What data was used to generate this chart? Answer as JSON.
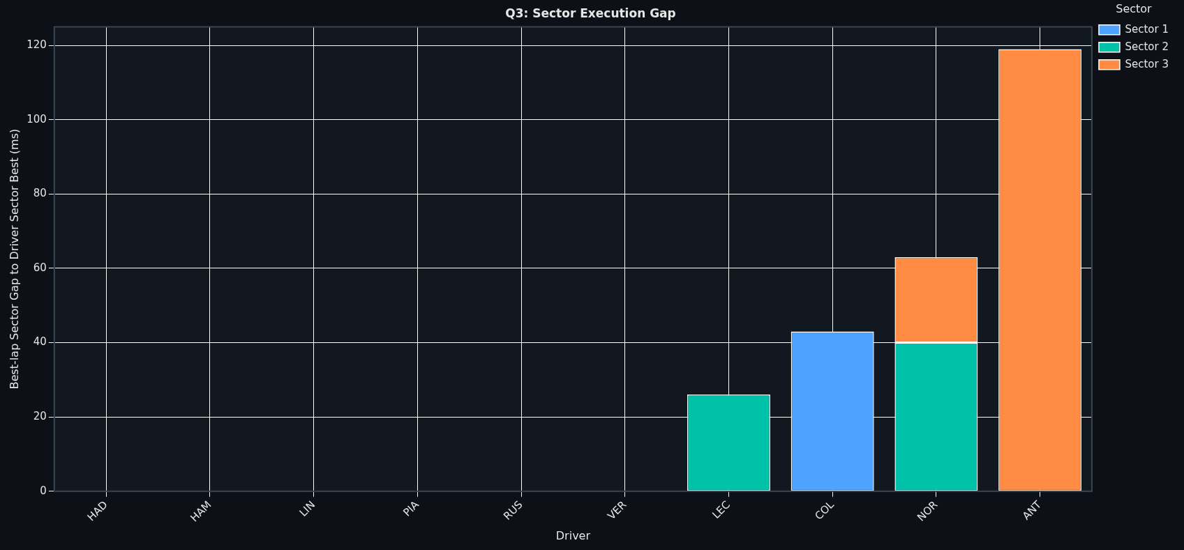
{
  "chart_data": {
    "type": "bar",
    "title": "Q3: Sector Execution Gap",
    "xlabel": "Driver",
    "ylabel": "Best-lap Sector Gap to Driver Sector Best (ms)",
    "legend_title": "Sector",
    "categories": [
      "HAD",
      "HAM",
      "LIN",
      "PIA",
      "RUS",
      "VER",
      "LEC",
      "COL",
      "NOR",
      "ANT"
    ],
    "series": [
      {
        "name": "Sector 1",
        "color": "#4da3ff",
        "values": [
          0,
          0,
          0,
          0,
          0,
          0,
          0,
          43,
          0,
          0
        ]
      },
      {
        "name": "Sector 2",
        "color": "#00c2a8",
        "values": [
          0,
          0,
          0,
          0,
          0,
          0,
          26,
          0,
          40,
          0
        ]
      },
      {
        "name": "Sector 3",
        "color": "#ff8c42",
        "values": [
          0,
          0,
          0,
          0,
          0,
          0,
          0,
          0,
          23,
          119
        ]
      }
    ],
    "stacked": true,
    "ylim": [
      0,
      125
    ],
    "yticks": [
      0,
      20,
      40,
      60,
      80,
      100,
      120
    ],
    "grid": true,
    "legend": "right"
  }
}
